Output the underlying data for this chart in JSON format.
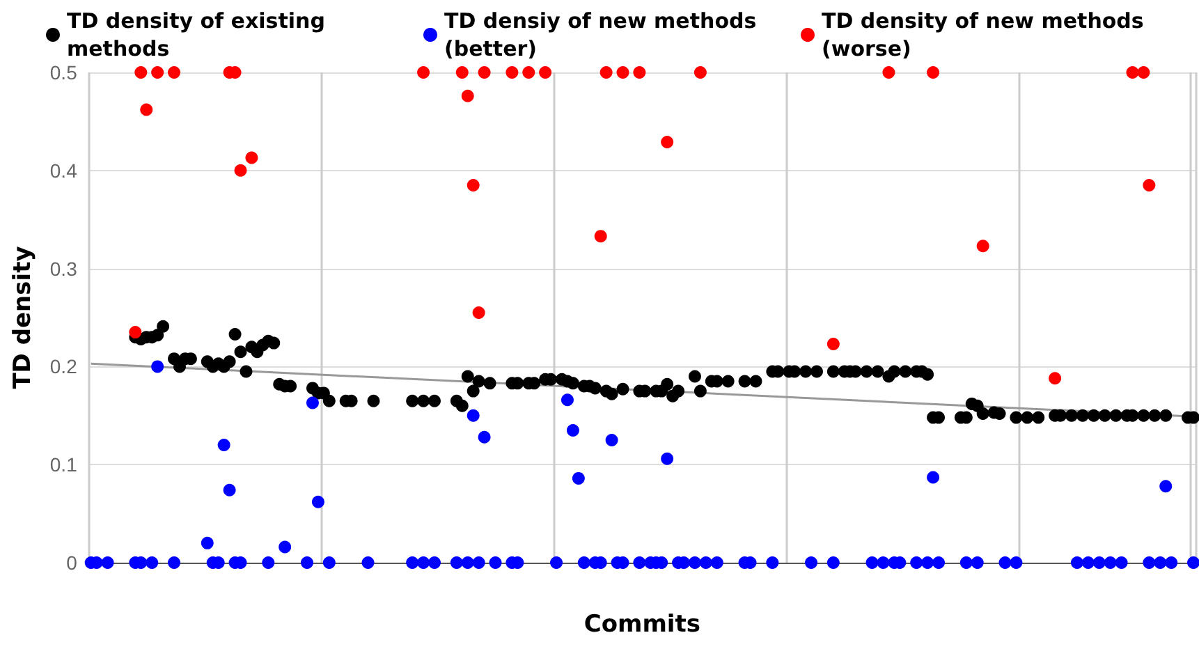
{
  "chart_data": {
    "type": "scatter",
    "xlabel": "Commits",
    "ylabel": "TD density",
    "ylim": [
      0,
      0.5
    ],
    "yticks": [
      0,
      0.1,
      0.2,
      0.3,
      0.4,
      0.5
    ],
    "grid": true,
    "legend": "top",
    "marker": "circle",
    "categories": [
      null,
      null,
      null,
      null,
      null,
      null,
      null,
      null,
      null,
      null,
      null,
      null,
      null,
      null,
      null,
      null,
      null,
      null,
      null,
      null,
      null,
      null,
      null,
      null,
      null,
      null,
      null,
      null,
      null,
      null,
      null,
      null,
      null,
      null,
      null,
      null,
      null,
      null,
      null,
      null,
      null,
      null,
      null,
      null,
      null,
      null,
      null,
      null,
      null,
      null,
      null,
      null,
      null,
      null,
      null,
      null,
      null,
      null,
      null,
      null,
      null,
      null,
      null,
      null,
      null,
      null,
      null,
      null,
      null,
      null,
      null,
      null,
      null,
      null,
      null,
      null,
      null,
      null,
      null,
      null,
      null,
      null,
      null,
      null,
      null,
      null,
      null,
      null,
      null,
      null,
      null,
      null,
      null,
      null,
      null,
      null,
      null,
      null,
      null,
      null,
      null,
      null,
      null,
      null,
      null,
      null,
      null,
      null,
      null,
      null,
      null,
      null,
      null,
      null,
      null,
      null,
      null,
      null,
      null,
      null,
      null,
      null,
      null,
      null,
      null,
      null,
      null,
      null,
      null,
      null,
      null,
      null,
      null,
      null,
      null,
      null,
      null,
      null,
      null,
      null,
      null,
      null,
      null,
      null,
      null,
      null,
      null,
      null,
      null,
      null,
      null,
      null,
      null,
      null,
      null,
      null,
      null,
      null,
      null,
      null,
      null,
      null,
      null,
      null,
      null,
      null,
      null,
      null,
      null,
      null,
      null,
      null,
      null,
      null,
      null,
      null,
      null,
      null,
      null,
      null,
      null,
      null,
      null,
      null,
      null,
      null,
      null,
      null,
      null,
      null,
      null,
      null,
      null,
      null,
      null,
      null,
      null,
      null,
      null,
      null
    ],
    "series": [
      {
        "name": "TD density of existing methods",
        "color": "#000000",
        "values": [
          null,
          null,
          null,
          null,
          null,
          null,
          null,
          null,
          0.23,
          0.228,
          0.23,
          0.23,
          0.232,
          0.241,
          null,
          0.208,
          0.2,
          0.208,
          0.208,
          null,
          null,
          0.205,
          0.2,
          0.203,
          0.2,
          0.205,
          0.233,
          0.215,
          0.195,
          0.22,
          0.215,
          0.222,
          0.226,
          0.224,
          0.182,
          0.18,
          0.18,
          null,
          null,
          null,
          0.178,
          0.173,
          0.173,
          0.165,
          null,
          null,
          0.165,
          0.165,
          null,
          null,
          null,
          0.165,
          null,
          null,
          null,
          null,
          null,
          null,
          0.165,
          null,
          0.165,
          null,
          0.165,
          null,
          null,
          null,
          0.165,
          0.16,
          0.19,
          0.175,
          0.185,
          null,
          0.183,
          null,
          null,
          null,
          0.183,
          0.183,
          null,
          0.183,
          0.183,
          null,
          0.187,
          0.187,
          null,
          0.187,
          0.185,
          0.183,
          null,
          0.18,
          0.18,
          0.178,
          null,
          0.175,
          0.172,
          null,
          0.177,
          null,
          null,
          0.175,
          0.175,
          null,
          0.175,
          0.175,
          0.182,
          0.17,
          0.175,
          null,
          null,
          0.19,
          0.175,
          null,
          0.185,
          0.185,
          null,
          0.185,
          null,
          null,
          0.185,
          null,
          0.185,
          null,
          null,
          0.195,
          0.195,
          null,
          0.195,
          0.195,
          null,
          0.195,
          null,
          0.195,
          null,
          null,
          0.195,
          null,
          0.195,
          0.195,
          0.195,
          null,
          0.195,
          null,
          0.195,
          null,
          0.19,
          0.195,
          null,
          0.195,
          null,
          0.195,
          0.195,
          0.192,
          0.148,
          0.148,
          null,
          null,
          null,
          0.148,
          0.148,
          0.162,
          0.16,
          0.152,
          null,
          0.153,
          0.152,
          null,
          null,
          0.148,
          null,
          0.148,
          null,
          0.148,
          null,
          null,
          0.15,
          0.15,
          null,
          0.15,
          null,
          0.15,
          null,
          0.15,
          null,
          0.15,
          null,
          0.15,
          null,
          0.15,
          0.15,
          null,
          0.15,
          null,
          0.15,
          null,
          0.15,
          null,
          null,
          null,
          0.148,
          0.148
        ]
      },
      {
        "name": "TD densiy of new methods (better)",
        "color": "#0000ff",
        "values": [
          0,
          0,
          null,
          0,
          null,
          null,
          null,
          null,
          0,
          0,
          null,
          0,
          0.2,
          null,
          null,
          0,
          null,
          null,
          null,
          null,
          null,
          0.02,
          0,
          0,
          0.12,
          0.074,
          0,
          0,
          null,
          null,
          null,
          null,
          0,
          null,
          null,
          0.016,
          null,
          null,
          null,
          0,
          0.163,
          0.062,
          null,
          0,
          null,
          null,
          null,
          null,
          null,
          null,
          0,
          null,
          null,
          null,
          null,
          null,
          null,
          null,
          0,
          null,
          0,
          null,
          0,
          null,
          null,
          null,
          0,
          null,
          0,
          0.15,
          0,
          0.128,
          null,
          0,
          null,
          null,
          0,
          0,
          null,
          null,
          null,
          null,
          null,
          null,
          0,
          null,
          0.166,
          0.135,
          0.086,
          0,
          null,
          0,
          0,
          null,
          0.125,
          0,
          0,
          null,
          null,
          0,
          null,
          0,
          0,
          0,
          0.106,
          null,
          0,
          0,
          null,
          0,
          null,
          0,
          null,
          0,
          null,
          null,
          null,
          null,
          0,
          0,
          null,
          null,
          null,
          0,
          null,
          null,
          null,
          null,
          null,
          null,
          0,
          null,
          null,
          null,
          0,
          null,
          null,
          null,
          null,
          null,
          null,
          0,
          null,
          0,
          null,
          0,
          0,
          null,
          null,
          0,
          null,
          0,
          0.087,
          0,
          null,
          null,
          null,
          null,
          0,
          null,
          0,
          null,
          null,
          null,
          null,
          0,
          null,
          0,
          null,
          null,
          null,
          null,
          null,
          null,
          null,
          null,
          null,
          null,
          0,
          null,
          0,
          null,
          0,
          null,
          0,
          null,
          0,
          null,
          null,
          null,
          null,
          0,
          null,
          0,
          0.078,
          0,
          null,
          null,
          null,
          0
        ]
      },
      {
        "name": "TD density of new methods (worse)",
        "color": "#ff0000",
        "values": [
          null,
          null,
          null,
          null,
          null,
          null,
          null,
          null,
          0.235,
          0.5,
          0.462,
          null,
          0.5,
          null,
          null,
          0.5,
          null,
          null,
          null,
          null,
          null,
          null,
          null,
          null,
          null,
          0.5,
          0.5,
          0.4,
          null,
          0.413,
          null,
          null,
          null,
          null,
          null,
          null,
          null,
          null,
          null,
          null,
          null,
          null,
          null,
          null,
          null,
          null,
          null,
          null,
          null,
          null,
          null,
          null,
          null,
          null,
          null,
          null,
          null,
          null,
          null,
          null,
          0.5,
          null,
          null,
          null,
          null,
          null,
          null,
          0.5,
          0.476,
          0.385,
          0.255,
          0.5,
          null,
          null,
          null,
          null,
          0.5,
          null,
          null,
          0.5,
          null,
          null,
          0.5,
          null,
          null,
          null,
          null,
          null,
          null,
          null,
          null,
          null,
          0.333,
          0.5,
          null,
          null,
          0.5,
          null,
          null,
          0.5,
          null,
          null,
          null,
          null,
          0.429,
          null,
          null,
          null,
          null,
          null,
          0.5,
          null,
          null,
          null,
          null,
          null,
          null,
          null,
          null,
          null,
          null,
          null,
          null,
          null,
          null,
          null,
          null,
          null,
          null,
          null,
          null,
          null,
          null,
          null,
          0.223,
          null,
          null,
          null,
          null,
          null,
          null,
          null,
          null,
          null,
          0.5,
          null,
          null,
          null,
          null,
          null,
          null,
          null,
          0.5,
          null,
          null,
          null,
          null,
          null,
          null,
          null,
          null,
          0.323,
          null,
          null,
          null,
          null,
          null,
          null,
          null,
          null,
          null,
          null,
          null,
          null,
          0.188,
          null,
          null,
          null,
          null,
          null,
          null,
          null,
          null,
          null,
          null,
          null,
          null,
          null,
          0.5,
          null,
          0.5,
          0.385,
          null,
          null,
          null,
          null,
          null,
          null,
          null,
          null
        ]
      },
      {
        "type": "line",
        "marker": "none",
        "color": "#999999",
        "values": [
          0.203,
          null,
          null,
          null,
          null,
          null,
          null,
          null,
          null,
          null,
          null,
          null,
          null,
          null,
          null,
          null,
          null,
          null,
          null,
          null,
          null,
          null,
          null,
          null,
          null,
          null,
          null,
          null,
          null,
          null,
          null,
          null,
          null,
          null,
          null,
          null,
          null,
          null,
          null,
          null,
          null,
          null,
          null,
          null,
          null,
          null,
          null,
          null,
          null,
          null,
          null,
          null,
          null,
          null,
          null,
          null,
          null,
          null,
          null,
          null,
          null,
          null,
          null,
          null,
          null,
          null,
          null,
          null,
          null,
          null,
          null,
          null,
          null,
          null,
          null,
          null,
          null,
          null,
          null,
          null,
          null,
          null,
          null,
          null,
          null,
          null,
          null,
          null,
          null,
          null,
          null,
          null,
          null,
          null,
          null,
          null,
          null,
          null,
          null,
          null,
          null,
          null,
          null,
          null,
          null,
          null,
          null,
          null,
          null,
          null,
          null,
          null,
          null,
          null,
          null,
          null,
          null,
          null,
          null,
          null,
          null,
          null,
          null,
          null,
          null,
          null,
          null,
          null,
          null,
          null,
          null,
          null,
          null,
          null,
          null,
          null,
          null,
          null,
          null,
          null,
          null,
          null,
          null,
          null,
          null,
          null,
          null,
          null,
          null,
          null,
          null,
          null,
          null,
          null,
          null,
          null,
          null,
          null,
          null,
          null,
          null,
          null,
          null,
          null,
          null,
          null,
          null,
          null,
          null,
          null,
          null,
          null,
          null,
          null,
          null,
          null,
          null,
          null,
          null,
          null,
          null,
          null,
          null,
          null,
          null,
          null,
          null,
          null,
          null,
          null,
          null,
          null,
          null,
          null,
          null,
          null,
          null,
          null,
          null,
          0.149
        ]
      }
    ]
  }
}
